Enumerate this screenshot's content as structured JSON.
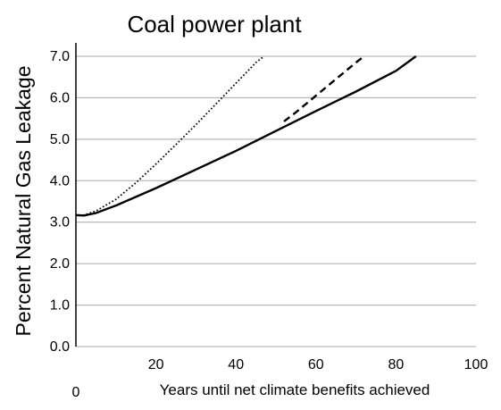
{
  "chart_data": {
    "type": "line",
    "title": "Coal power plant",
    "xlabel": "Years until net climate benefits achieved",
    "ylabel": "Percent Natural Gas Leakage",
    "xlim": [
      0,
      100
    ],
    "ylim": [
      0,
      7
    ],
    "x_ticks": [
      0,
      20,
      40,
      60,
      80,
      100
    ],
    "y_ticks": [
      0,
      1,
      2,
      3,
      4,
      5,
      6,
      7
    ],
    "y_tick_labels": [
      "0.0",
      "1.0",
      "2.0",
      "3.0",
      "4.0",
      "5.0",
      "6.0",
      "7.0"
    ],
    "grid": "horizontal",
    "series": [
      {
        "style": "dotted",
        "x": [
          0,
          2,
          5,
          10,
          15,
          20,
          25,
          30,
          35,
          40,
          45,
          47
        ],
        "y": [
          3.17,
          3.17,
          3.27,
          3.55,
          3.95,
          4.4,
          4.87,
          5.35,
          5.85,
          6.35,
          6.85,
          7.0
        ]
      },
      {
        "style": "dashed",
        "x": [
          52,
          55,
          60,
          65,
          70,
          72
        ],
        "y": [
          5.43,
          5.65,
          6.05,
          6.45,
          6.85,
          7.0
        ]
      },
      {
        "style": "solid",
        "x": [
          0,
          2,
          5,
          10,
          20,
          30,
          40,
          50,
          60,
          70,
          80,
          85
        ],
        "y": [
          3.17,
          3.16,
          3.22,
          3.4,
          3.82,
          4.27,
          4.72,
          5.2,
          5.68,
          6.15,
          6.65,
          7.0
        ]
      }
    ]
  }
}
